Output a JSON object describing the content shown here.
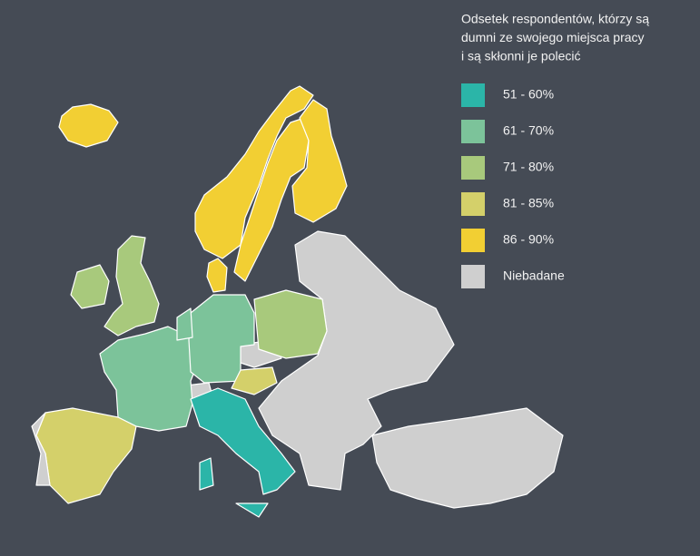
{
  "legend": {
    "title_lines": [
      "Odsetek respondentów, którzy są",
      "dumni ze swojego miejsca pracy",
      "i są skłonni je polecić"
    ],
    "items": [
      {
        "label": "51 - 60%",
        "color": "#2bb5a8"
      },
      {
        "label": "61 - 70%",
        "color": "#7cc39a"
      },
      {
        "label": "71 - 80%",
        "color": "#a8c97c"
      },
      {
        "label": "81 - 85%",
        "color": "#d4d06a"
      },
      {
        "label": "86 - 90%",
        "color": "#f2cf33"
      },
      {
        "label": "Niebadane",
        "color": "#cfcfcf"
      }
    ]
  }
}
